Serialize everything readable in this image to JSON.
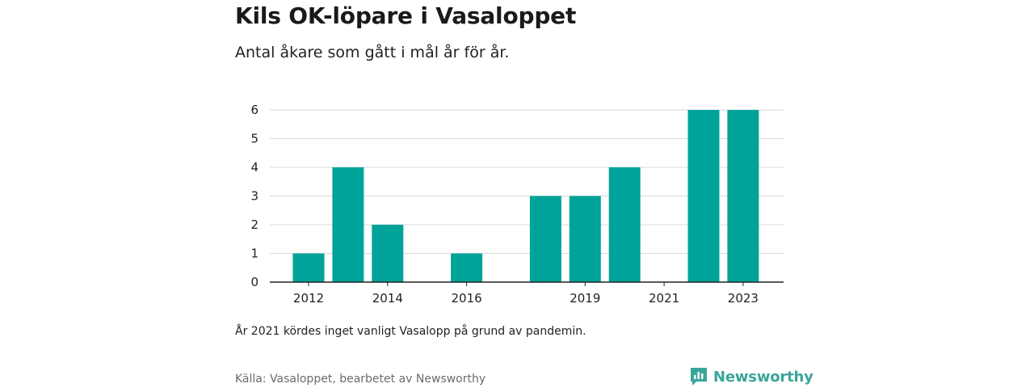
{
  "header": {
    "title": "Kils OK-löpare i Vasaloppet",
    "subtitle": "Antal åkare som gått i mål år för år."
  },
  "footer": {
    "note": "År 2021 kördes inget vanligt Vasalopp på grund av pandemin.",
    "source": "Källa: Vasaloppet, bearbetet av Newsworthy",
    "brand": "Newsworthy",
    "brand_icon": "newsworthy-logo-icon"
  },
  "colors": {
    "bar": "#00a399",
    "grid": "#d9d9d9",
    "axis": "#222222",
    "brand": "#3aa59a"
  },
  "chart_data": {
    "type": "bar",
    "categories": [
      "2012",
      "2013",
      "2014",
      "2015",
      "2016",
      "2017",
      "2018",
      "2019",
      "2020",
      "2021",
      "2022",
      "2023"
    ],
    "values": [
      1,
      4,
      2,
      0,
      1,
      0,
      3,
      3,
      4,
      0,
      6,
      6
    ],
    "x_tick_labels": [
      "2012",
      "2014",
      "2016",
      "2019",
      "2021",
      "2023"
    ],
    "y_ticks": [
      0,
      1,
      2,
      3,
      4,
      5,
      6
    ],
    "ylim": [
      0,
      6
    ],
    "grid": true,
    "legend": "none"
  }
}
